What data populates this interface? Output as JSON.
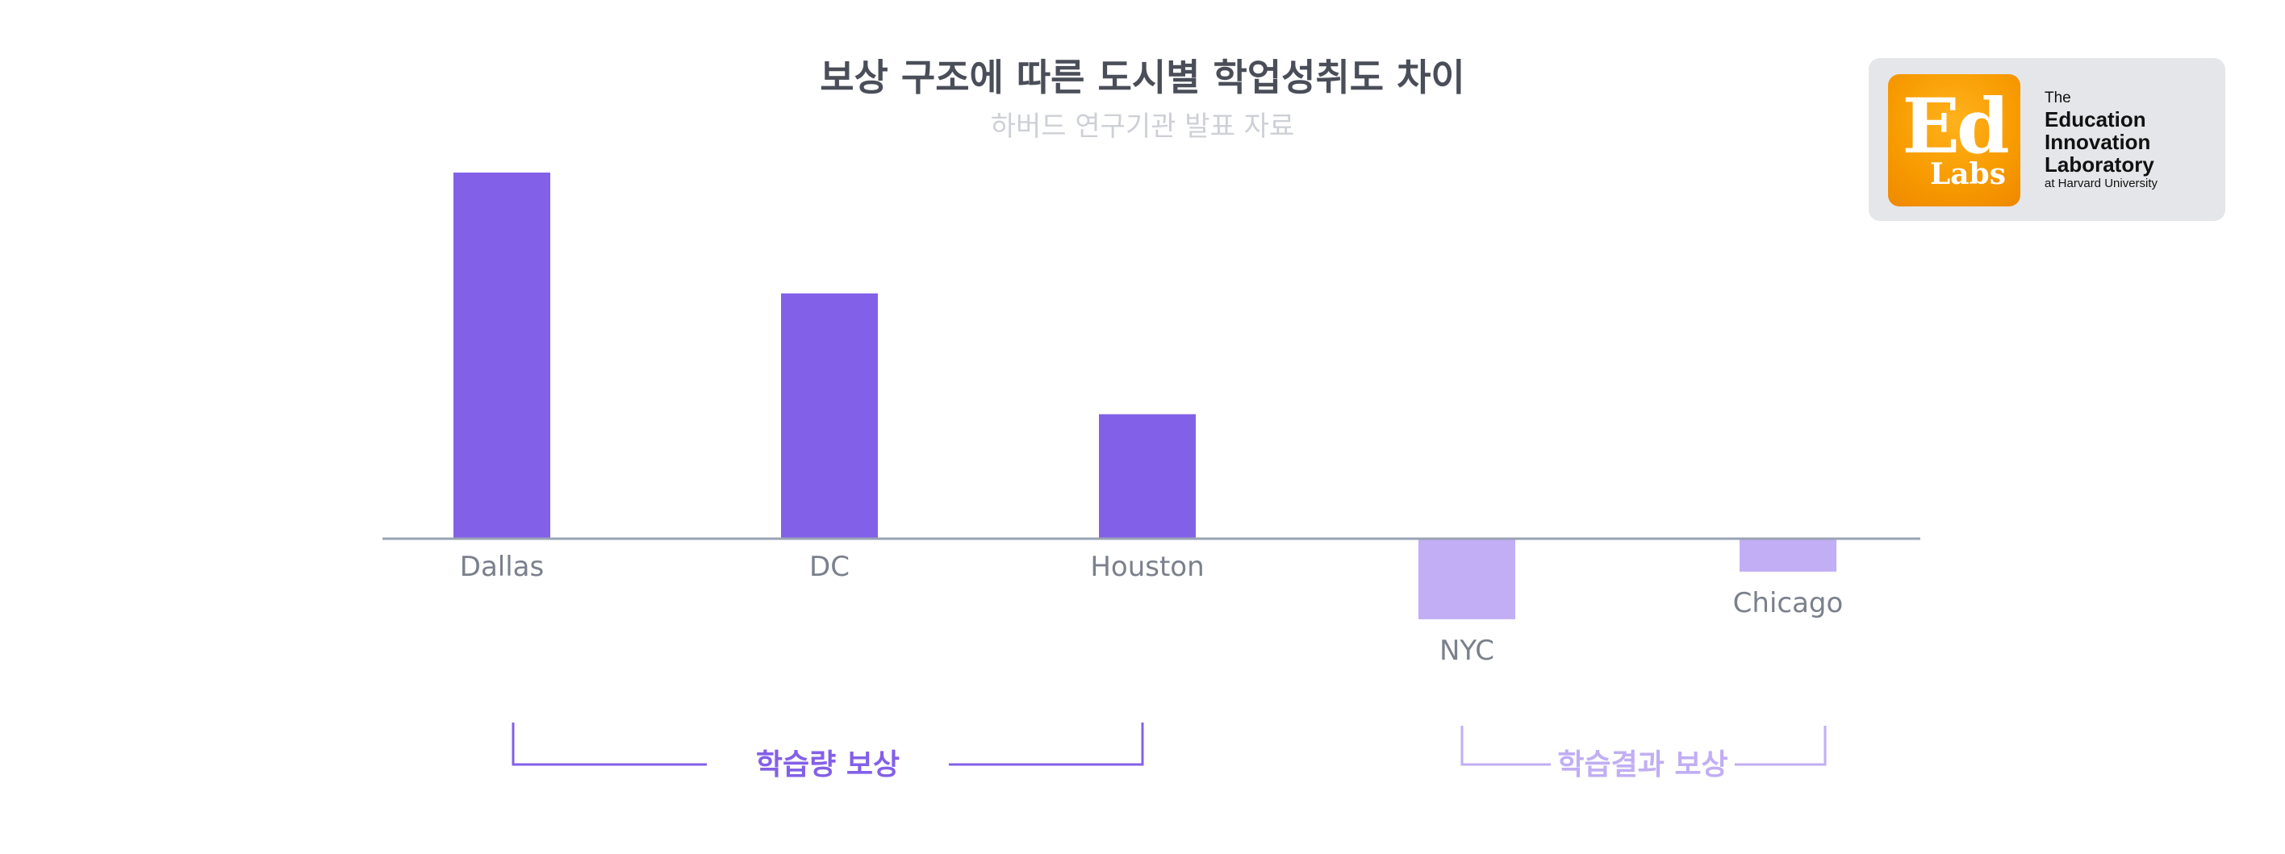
{
  "chart_data": {
    "type": "bar",
    "title": "보상 구조에 따른 도시별 학업성취도 차이",
    "subtitle": "하버드 연구기관 발표 자료",
    "categories": [
      "Dallas",
      "DC",
      "Houston",
      "NYC",
      "Chicago"
    ],
    "values": [
      1.0,
      0.67,
      0.34,
      -0.22,
      -0.09
    ],
    "ylim": [
      -0.3,
      1.0
    ],
    "grid": false,
    "bar_colors": [
      "#8360e8",
      "#8360e8",
      "#8360e8",
      "#c1aef4",
      "#c1aef4"
    ],
    "groups": [
      {
        "label": "학습량 보상",
        "categories": [
          "Dallas",
          "DC",
          "Houston"
        ],
        "color": "#8360e8"
      },
      {
        "label": "학습결과 보상",
        "categories": [
          "NYC",
          "Chicago"
        ],
        "color": "#c1aef4"
      }
    ]
  },
  "logo": {
    "badge_big": "Ed",
    "badge_small": "Labs",
    "the": "The",
    "line1": "Education",
    "line2": "Innovation",
    "line3": "Laboratory",
    "line4": "at Harvard University",
    "badge_color": "#f79a00"
  },
  "colors": {
    "title": "#4a4e58",
    "subtitle": "#cdd0d6",
    "axis": "#9aa3b5",
    "tick_label": "#7a808c"
  }
}
